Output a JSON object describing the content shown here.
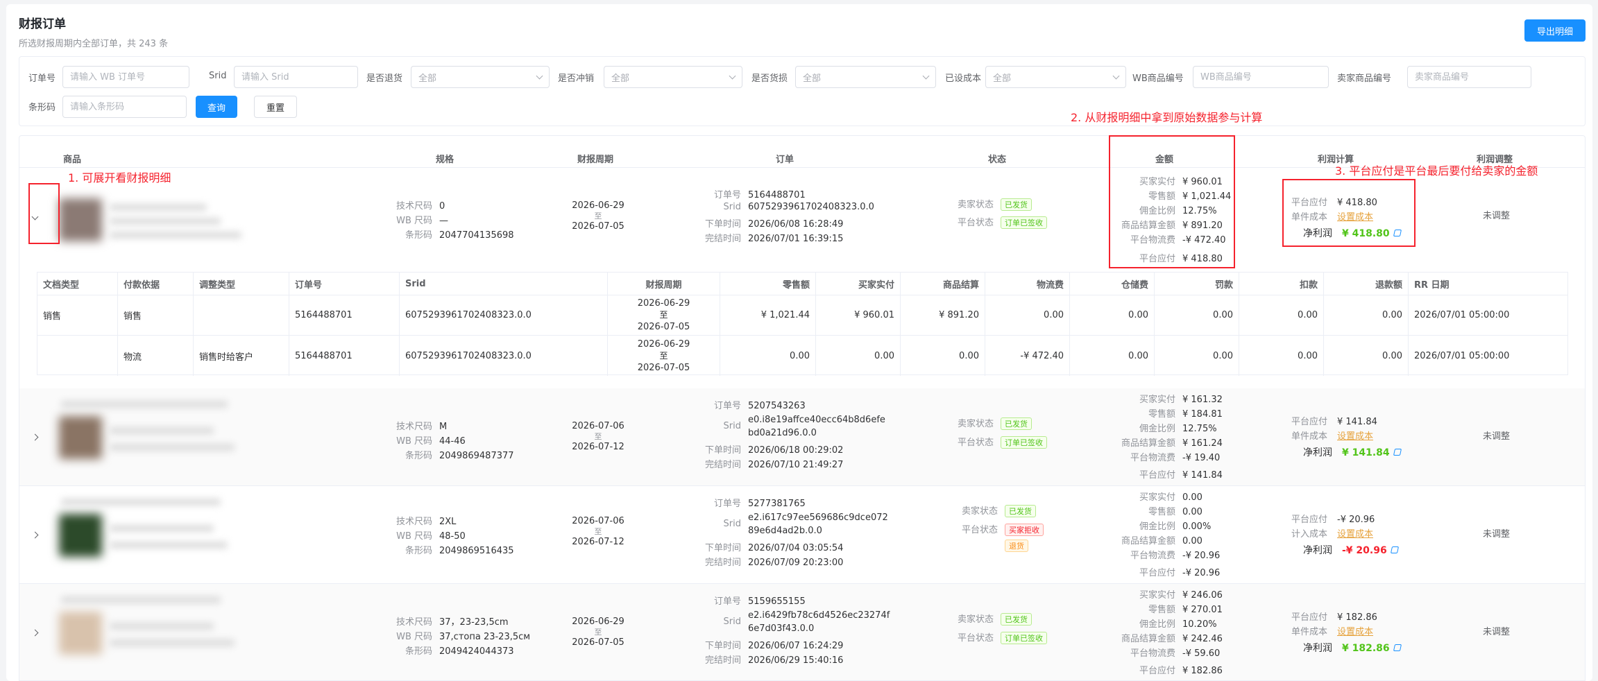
{
  "page": {
    "title": "财报订单",
    "subtitle": "所选财报周期内全部订单，共 243 条",
    "export_label": "导出明细"
  },
  "filters": {
    "order_no": {
      "label": "订单号",
      "placeholder": "请输入 WB 订单号"
    },
    "srid": {
      "label": "Srid",
      "placeholder": "请输入 Srid"
    },
    "is_return": {
      "label": "是否退货",
      "value": "全部"
    },
    "is_reversal": {
      "label": "是否冲销",
      "value": "全部"
    },
    "is_damaged": {
      "label": "是否货损",
      "value": "全部"
    },
    "has_cost": {
      "label": "已设成本",
      "value": "全部"
    },
    "wb_sku": {
      "label": "WB商品编号",
      "placeholder": "WB商品编号"
    },
    "seller_sku": {
      "label": "卖家商品编号",
      "placeholder": "卖家商品编号"
    },
    "barcode": {
      "label": "条形码",
      "placeholder": "请输入条形码"
    },
    "query_label": "查询",
    "reset_label": "重置"
  },
  "table": {
    "headers": {
      "product": "商品",
      "spec": "规格",
      "period": "财报周期",
      "order": "订单",
      "status": "状态",
      "amount": "金额",
      "profit": "利润计算",
      "adjust": "利润调整"
    },
    "spec_keys": {
      "size": "技术尺码",
      "wb_size": "WB 尺码",
      "barcode": "条形码"
    },
    "order_keys": {
      "order_no": "订单号",
      "srid": "Srid",
      "order_time": "下单时间",
      "complete_time": "完结时间"
    },
    "status_keys": {
      "seller": "卖家状态",
      "platform": "平台状态"
    },
    "amount_keys": {
      "paid": "买家实付",
      "retail": "零售额",
      "commission": "佣金比例",
      "settle": "商品结算金额",
      "logistics": "平台物流费",
      "payable": "平台应付"
    },
    "profit_keys": {
      "payable": "平台应付",
      "unit_cost": "单件成本",
      "include_cost": "计入成本",
      "net": "净利润"
    },
    "period_sep": "至",
    "set_cost_label": "设置成本",
    "unadjusted_label": "未调整",
    "rows": [
      {
        "size": "0",
        "wb_size": "—",
        "barcode": "2047704135698",
        "period_start": "2026-06-29",
        "period_end": "2026-07-05",
        "order_no": "5164488701",
        "srid": "6075293961702408323.0.0",
        "order_time": "2026/06/08 16:28:49",
        "complete_time": "2026/07/01 16:39:15",
        "seller_status": "已发货",
        "platform_status": "订单已签收",
        "paid": "¥ 960.01",
        "retail": "¥ 1,021.44",
        "commission": "12.75%",
        "settle": "¥ 891.20",
        "logistics": "-¥ 472.40",
        "payable": "¥ 418.80",
        "profit_payable": "¥ 418.80",
        "net_profit": "¥ 418.80"
      },
      {
        "size": "M",
        "wb_size": "44-46",
        "barcode": "2049869487377",
        "period_start": "2026-07-06",
        "period_end": "2026-07-12",
        "order_no": "5207543263",
        "srid_1": "e0.i8e19affce40ecc64b8d6efe",
        "srid_2": "bd0a21d96.0.0",
        "order_time": "2026/06/18 00:29:02",
        "complete_time": "2026/07/10 21:49:27",
        "seller_status": "已发货",
        "platform_status": "订单已签收",
        "paid": "¥ 161.32",
        "retail": "¥ 184.81",
        "commission": "12.75%",
        "settle": "¥ 161.24",
        "logistics": "-¥ 19.40",
        "payable": "¥ 141.84",
        "profit_payable": "¥ 141.84",
        "net_profit": "¥ 141.84"
      },
      {
        "size": "2XL",
        "wb_size": "48-50",
        "barcode": "2049869516435",
        "period_start": "2026-07-06",
        "period_end": "2026-07-12",
        "order_no": "5277381765",
        "srid_1": "e2.i617c97ee569686c9dce072",
        "srid_2": "89e6d4ad2b.0.0",
        "order_time": "2026/07/04 03:05:54",
        "complete_time": "2026/07/09 20:23:00",
        "seller_status": "已发货",
        "platform_status": "买家拒收",
        "extra_tag": "退货",
        "paid": "0.00",
        "retail": "0.00",
        "commission": "0.00%",
        "settle": "0.00",
        "logistics": "-¥ 20.96",
        "payable": "-¥ 20.96",
        "profit_payable": "-¥ 20.96",
        "net_profit": "-¥ 20.96"
      },
      {
        "size": "37，23-23,5cm",
        "wb_size": "37,стопа 23-23,5см",
        "barcode": "2049424044373",
        "period_start": "2026-06-29",
        "period_end": "2026-07-05",
        "order_no": "5159655155",
        "srid_1": "e2.i6429fb78c6d4526ec23274f",
        "srid_2": "6e7d03f43.0.0",
        "order_time": "2026/06/07 16:24:29",
        "complete_time": "2026/06/29 15:40:16",
        "seller_status": "已发货",
        "platform_status": "订单已签收",
        "paid": "¥ 246.06",
        "retail": "¥ 270.01",
        "commission": "10.20%",
        "settle": "¥ 242.46",
        "logistics": "-¥ 59.60",
        "payable": "¥ 182.86",
        "profit_payable": "¥ 182.86",
        "net_profit": "¥ 182.86"
      }
    ]
  },
  "detail": {
    "headers": [
      "文档类型",
      "付款依据",
      "调整类型",
      "订单号",
      "Srid",
      "财报周期",
      "零售额",
      "买家实付",
      "商品结算",
      "物流费",
      "仓储费",
      "罚款",
      "扣款",
      "退款额",
      "RR 日期"
    ],
    "rows": [
      {
        "doc_type": "销售",
        "basis": "销售",
        "adj_type": "",
        "order_no": "5164488701",
        "srid": "6075293961702408323.0.0",
        "p_start": "2026-06-29",
        "p_end": "2026-07-05",
        "retail": "¥ 1,021.44",
        "paid": "¥ 960.01",
        "settle": "¥ 891.20",
        "logistics": "0.00",
        "storage": "0.00",
        "fine": "0.00",
        "deduct": "0.00",
        "refund": "0.00",
        "rr_date": "2026/07/01 05:00:00"
      },
      {
        "doc_type": "",
        "basis": "物流",
        "adj_type": "销售时给客户",
        "order_no": "5164488701",
        "srid": "6075293961702408323.0.0",
        "p_start": "2026-06-29",
        "p_end": "2026-07-05",
        "retail": "0.00",
        "paid": "0.00",
        "settle": "0.00",
        "logistics": "-¥ 472.40",
        "storage": "0.00",
        "fine": "0.00",
        "deduct": "0.00",
        "refund": "0.00",
        "rr_date": "2026/07/01 05:00:00"
      }
    ]
  },
  "annotations": {
    "a1": "1. 可展开看财报明细",
    "a2": "2. 从财报明细中拿到原始数据参与计算",
    "a3": "3. 平台应付是平台最后要付给卖家的金额"
  },
  "colors": {
    "primary": "#1890ff",
    "success": "#52c41a",
    "danger": "#f5222d",
    "warning": "#e6a23c",
    "annotation": "#f5222d"
  }
}
